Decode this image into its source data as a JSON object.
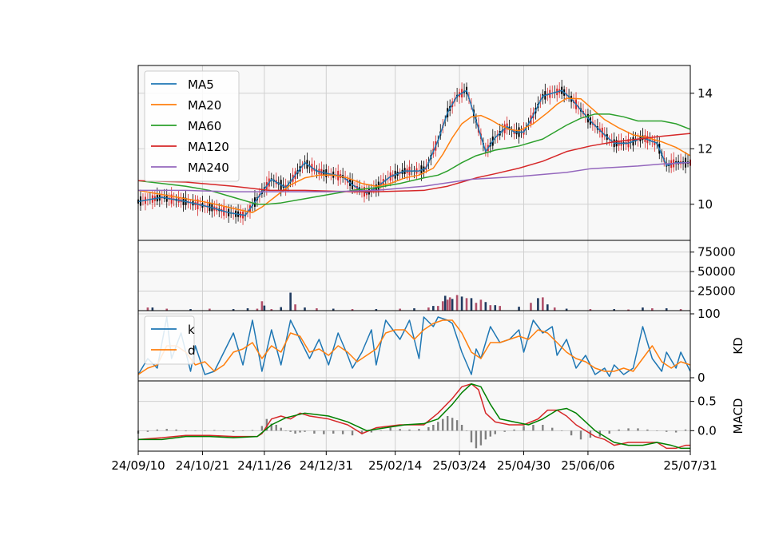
{
  "colors": {
    "background": "#ffffff",
    "panel_bg": "#f8f8f8",
    "grid": "#d0d0d0",
    "candle_up": "#d62728",
    "candle_down": "#000000",
    "volume_up": "#b0506a",
    "volume_down": "#1f3a5f",
    "macd_hist": "#808080"
  },
  "chart_data": [
    {
      "panel": "price",
      "type": "line",
      "subtype": "candlestick",
      "yticks": [
        "10",
        "12",
        "14"
      ],
      "ylim": [
        8.7,
        15.0
      ],
      "legend": "top-left",
      "grid": true,
      "x_range": [
        0,
        232
      ],
      "series": [
        {
          "name": "MA5",
          "color": "#1f77b4",
          "x": [
            0,
            10,
            20,
            30,
            38,
            45,
            50,
            56,
            62,
            70,
            75,
            80,
            86,
            90,
            96,
            100,
            106,
            112,
            118,
            121,
            126,
            130,
            134,
            138,
            142,
            146,
            150,
            155,
            158,
            162,
            166,
            170,
            174,
            178,
            182,
            186,
            190,
            196,
            200,
            206,
            212,
            218,
            222,
            226,
            232
          ],
          "y": [
            10.1,
            10.25,
            10.1,
            9.9,
            9.7,
            9.6,
            10.2,
            10.9,
            10.6,
            11.5,
            11.2,
            11.1,
            11.0,
            10.7,
            10.4,
            10.6,
            11.0,
            11.2,
            11.2,
            11.3,
            12.3,
            13.3,
            13.9,
            14.1,
            13.0,
            11.9,
            12.4,
            12.8,
            12.6,
            12.6,
            13.2,
            13.9,
            14.0,
            14.1,
            13.8,
            13.4,
            13.0,
            12.5,
            12.2,
            12.2,
            12.4,
            12.2,
            11.4,
            11.5,
            11.5
          ]
        },
        {
          "name": "MA20",
          "color": "#ff7f0e",
          "x": [
            0,
            10,
            20,
            30,
            40,
            48,
            52,
            58,
            64,
            70,
            76,
            82,
            88,
            94,
            100,
            106,
            112,
            118,
            124,
            128,
            132,
            136,
            140,
            144,
            148,
            152,
            156,
            160,
            166,
            172,
            176,
            180,
            186,
            190,
            196,
            202,
            208,
            214,
            220,
            226,
            232
          ],
          "y": [
            10.5,
            10.35,
            10.2,
            10.05,
            9.85,
            9.7,
            9.9,
            10.3,
            10.7,
            10.95,
            11.05,
            11.05,
            10.95,
            10.75,
            10.65,
            10.75,
            10.95,
            11.05,
            11.3,
            11.8,
            12.4,
            12.9,
            13.15,
            13.2,
            13.05,
            12.85,
            12.7,
            12.65,
            12.9,
            13.3,
            13.6,
            13.82,
            13.8,
            13.5,
            13.05,
            12.75,
            12.5,
            12.4,
            12.25,
            12.05,
            11.75
          ]
        },
        {
          "name": "MA60",
          "color": "#2ca02c",
          "x": [
            0,
            10,
            20,
            30,
            40,
            50,
            54,
            60,
            70,
            80,
            90,
            100,
            110,
            120,
            126,
            130,
            136,
            142,
            150,
            160,
            170,
            180,
            186,
            192,
            198,
            204,
            210,
            220,
            226,
            232
          ],
          "y": [
            10.85,
            10.75,
            10.65,
            10.5,
            10.25,
            10.0,
            10.0,
            10.05,
            10.2,
            10.35,
            10.5,
            10.6,
            10.75,
            10.95,
            11.05,
            11.2,
            11.5,
            11.75,
            11.95,
            12.1,
            12.35,
            12.85,
            13.1,
            13.25,
            13.25,
            13.15,
            13.0,
            13.0,
            12.9,
            12.7
          ]
        },
        {
          "name": "MA120",
          "color": "#d62728",
          "x": [
            0,
            20,
            40,
            55,
            70,
            90,
            100,
            120,
            130,
            136,
            142,
            150,
            160,
            170,
            180,
            190,
            200,
            210,
            220,
            232
          ],
          "y": [
            10.85,
            10.8,
            10.65,
            10.5,
            10.5,
            10.45,
            10.45,
            10.5,
            10.65,
            10.8,
            10.95,
            11.1,
            11.3,
            11.55,
            11.9,
            12.1,
            12.25,
            12.35,
            12.45,
            12.55
          ]
        },
        {
          "name": "MA240",
          "color": "#9467bd",
          "x": [
            0,
            20,
            40,
            60,
            80,
            100,
            120,
            140,
            160,
            180,
            190,
            200,
            210,
            220,
            232
          ],
          "y": [
            10.5,
            10.5,
            10.45,
            10.45,
            10.45,
            10.5,
            10.65,
            10.9,
            11.0,
            11.15,
            11.28,
            11.33,
            11.38,
            11.45,
            11.5
          ]
        }
      ]
    },
    {
      "panel": "volume",
      "type": "bar",
      "yticks": [
        "25000",
        "50000",
        "75000"
      ],
      "ylim": [
        0,
        90000
      ],
      "grid": true,
      "x": [
        4,
        6,
        12,
        22,
        30,
        40,
        46,
        50,
        52,
        53,
        56,
        60,
        64,
        66,
        70,
        75,
        82,
        90,
        100,
        110,
        116,
        122,
        124,
        126,
        128,
        129,
        130,
        131,
        132,
        134,
        136,
        138,
        140,
        142,
        144,
        146,
        148,
        150,
        152,
        160,
        165,
        168,
        170,
        172,
        175,
        180,
        190,
        200,
        206,
        212,
        216,
        222,
        228
      ],
      "values": [
        4000,
        4000,
        2500,
        2000,
        2500,
        2000,
        3000,
        2500,
        12000,
        6500,
        2000,
        4500,
        23000,
        8000,
        4000,
        3000,
        2500,
        2000,
        2000,
        2500,
        3000,
        4000,
        6000,
        6000,
        12000,
        19000,
        14000,
        17000,
        15000,
        20000,
        18000,
        16000,
        16000,
        10000,
        14000,
        11000,
        7000,
        7000,
        6000,
        5000,
        10000,
        16000,
        17000,
        8000,
        4000,
        2500,
        2000,
        2000,
        1500,
        4000,
        3000,
        3000,
        2000
      ],
      "up": [
        true,
        false,
        true,
        false,
        true,
        false,
        false,
        true,
        true,
        false,
        true,
        false,
        false,
        true,
        false,
        true,
        false,
        true,
        false,
        true,
        false,
        true,
        false,
        true,
        true,
        false,
        true,
        true,
        false,
        true,
        false,
        true,
        false,
        true,
        true,
        false,
        true,
        false,
        true,
        false,
        true,
        false,
        true,
        false,
        true,
        false,
        true,
        false,
        true,
        false,
        true,
        false,
        true
      ]
    },
    {
      "panel": "kd",
      "type": "line",
      "ylabel": "KD",
      "yticks": [
        "0",
        "100"
      ],
      "ylim": [
        -5,
        105
      ],
      "legend": "top-left",
      "grid": true,
      "series": [
        {
          "name": "k",
          "color": "#1f77b4",
          "x": [
            0,
            4,
            8,
            12,
            14,
            18,
            22,
            24,
            28,
            32,
            36,
            40,
            44,
            48,
            52,
            56,
            60,
            64,
            68,
            72,
            76,
            80,
            84,
            88,
            90,
            94,
            98,
            100,
            104,
            106,
            110,
            114,
            118,
            120,
            124,
            126,
            130,
            132,
            136,
            140,
            142,
            144,
            148,
            152,
            156,
            160,
            162,
            166,
            170,
            174,
            176,
            180,
            184,
            188,
            192,
            196,
            198,
            200,
            204,
            208,
            212,
            216,
            220,
            222,
            226,
            228,
            232
          ],
          "y": [
            5,
            30,
            15,
            95,
            30,
            70,
            10,
            50,
            5,
            10,
            40,
            70,
            20,
            90,
            10,
            75,
            20,
            90,
            60,
            30,
            60,
            20,
            70,
            35,
            15,
            40,
            75,
            20,
            90,
            80,
            60,
            90,
            30,
            95,
            80,
            95,
            90,
            85,
            40,
            5,
            45,
            30,
            80,
            55,
            60,
            75,
            40,
            90,
            70,
            80,
            35,
            60,
            15,
            35,
            5,
            15,
            2,
            20,
            5,
            15,
            80,
            30,
            10,
            40,
            15,
            40,
            10
          ]
        },
        {
          "name": "d",
          "color": "#ff7f0e",
          "x": [
            0,
            4,
            8,
            12,
            16,
            20,
            24,
            28,
            32,
            36,
            40,
            44,
            48,
            52,
            56,
            60,
            64,
            68,
            72,
            76,
            80,
            84,
            88,
            92,
            96,
            100,
            104,
            108,
            112,
            116,
            120,
            124,
            128,
            132,
            136,
            140,
            144,
            148,
            152,
            156,
            160,
            164,
            168,
            172,
            176,
            180,
            184,
            188,
            192,
            196,
            200,
            204,
            208,
            212,
            216,
            220,
            224,
            228,
            232
          ],
          "y": [
            5,
            15,
            20,
            50,
            50,
            40,
            20,
            25,
            10,
            20,
            40,
            45,
            55,
            30,
            50,
            40,
            70,
            65,
            40,
            45,
            35,
            50,
            40,
            25,
            35,
            45,
            70,
            75,
            75,
            60,
            75,
            85,
            90,
            90,
            70,
            40,
            30,
            55,
            55,
            60,
            65,
            60,
            75,
            70,
            55,
            40,
            30,
            25,
            15,
            10,
            10,
            15,
            10,
            30,
            50,
            25,
            15,
            25,
            20
          ]
        }
      ]
    },
    {
      "panel": "macd",
      "type": "line",
      "ylabel": "MACD",
      "yticks": [
        "0.0",
        "0.5"
      ],
      "ylim": [
        -0.35,
        0.85
      ],
      "grid": true,
      "series": [
        {
          "name": "",
          "color": "#d62728",
          "x": [
            0,
            10,
            20,
            30,
            40,
            50,
            52,
            56,
            60,
            64,
            68,
            72,
            80,
            88,
            94,
            100,
            110,
            120,
            126,
            132,
            136,
            140,
            143,
            146,
            150,
            156,
            162,
            168,
            172,
            176,
            180,
            184,
            188,
            192,
            196,
            200,
            206,
            212,
            218,
            222,
            226,
            230,
            232
          ],
          "y": [
            -0.15,
            -0.12,
            -0.08,
            -0.08,
            -0.1,
            -0.1,
            -0.05,
            0.2,
            0.25,
            0.2,
            0.3,
            0.25,
            0.2,
            0.1,
            -0.05,
            0.05,
            0.1,
            0.1,
            0.3,
            0.55,
            0.75,
            0.8,
            0.7,
            0.3,
            0.15,
            0.1,
            0.1,
            0.2,
            0.35,
            0.35,
            0.25,
            0.1,
            0.0,
            -0.1,
            -0.15,
            -0.25,
            -0.2,
            -0.2,
            -0.2,
            -0.3,
            -0.3,
            -0.25,
            -0.25
          ]
        },
        {
          "name": "",
          "color": "#008000",
          "x": [
            0,
            10,
            20,
            30,
            40,
            50,
            56,
            62,
            70,
            80,
            88,
            96,
            104,
            112,
            120,
            126,
            132,
            136,
            140,
            144,
            148,
            152,
            158,
            164,
            170,
            176,
            180,
            184,
            188,
            192,
            196,
            200,
            206,
            212,
            218,
            224,
            228,
            232
          ],
          "y": [
            -0.15,
            -0.15,
            -0.1,
            -0.1,
            -0.12,
            -0.1,
            0.1,
            0.22,
            0.3,
            0.25,
            0.15,
            0.0,
            0.05,
            0.1,
            0.12,
            0.2,
            0.45,
            0.65,
            0.8,
            0.75,
            0.45,
            0.2,
            0.15,
            0.1,
            0.2,
            0.35,
            0.38,
            0.3,
            0.15,
            0.0,
            -0.1,
            -0.2,
            -0.25,
            -0.25,
            -0.2,
            -0.25,
            -0.3,
            -0.3
          ]
        }
      ],
      "histogram": {
        "x": [
          0,
          4,
          8,
          12,
          16,
          20,
          24,
          28,
          32,
          36,
          40,
          44,
          48,
          52,
          54,
          56,
          58,
          60,
          62,
          64,
          66,
          68,
          70,
          74,
          78,
          82,
          86,
          90,
          94,
          98,
          102,
          106,
          110,
          114,
          118,
          122,
          124,
          126,
          128,
          130,
          132,
          134,
          136,
          138,
          140,
          142,
          144,
          146,
          148,
          150,
          154,
          158,
          162,
          166,
          170,
          174,
          178,
          182,
          186,
          190,
          194,
          198,
          202,
          206,
          210,
          214,
          218,
          222,
          226,
          230
        ],
        "values": [
          -0.05,
          -0.02,
          0.02,
          0.03,
          0.02,
          -0.01,
          0.0,
          0.0,
          0.01,
          0.0,
          -0.02,
          0.0,
          0.01,
          0.08,
          0.2,
          0.12,
          0.1,
          0.05,
          0.0,
          -0.02,
          -0.05,
          -0.03,
          -0.02,
          -0.05,
          -0.06,
          -0.05,
          -0.06,
          -0.08,
          -0.06,
          -0.03,
          0.0,
          0.05,
          0.03,
          0.02,
          0.03,
          0.06,
          0.1,
          0.15,
          0.2,
          0.25,
          0.22,
          0.18,
          0.1,
          0.0,
          -0.2,
          -0.3,
          -0.25,
          -0.15,
          -0.1,
          -0.06,
          -0.02,
          0.02,
          0.08,
          0.1,
          0.1,
          0.05,
          0.0,
          -0.08,
          -0.15,
          -0.12,
          -0.1,
          -0.05,
          0.02,
          0.04,
          0.04,
          0.02,
          0.0,
          -0.02,
          -0.03,
          0.02
        ]
      }
    }
  ],
  "x_axis": {
    "tick_labels": [
      "24/09/10",
      "24/10/21",
      "24/11/26",
      "24/12/31",
      "25/02/14",
      "25/03/24",
      "25/04/30",
      "25/06/06",
      "25/07/31"
    ],
    "tick_x": [
      0,
      27,
      53,
      79,
      108,
      135,
      162,
      189,
      232
    ]
  }
}
